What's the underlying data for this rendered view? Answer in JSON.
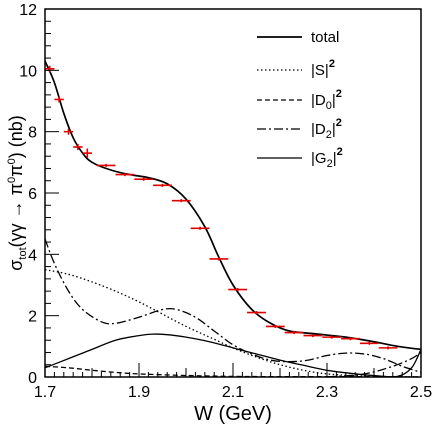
{
  "chart_data": {
    "type": "line",
    "xlabel": "W (GeV)",
    "ylabel": "σtot(γγ → π0π0) (nb)",
    "xlim": [
      1.7,
      2.5
    ],
    "ylim": [
      0,
      12
    ],
    "x_ticks": [
      "1.7",
      "1.9",
      "2.1",
      "2.3",
      "2.5"
    ],
    "y_ticks": [
      "0",
      "2",
      "4",
      "6",
      "8",
      "10",
      "12"
    ],
    "legend_position": "top-right",
    "grid": false,
    "series": [
      {
        "name": "total",
        "style": "solid",
        "points": [
          [
            1.7,
            10.3
          ],
          [
            1.72,
            9.6
          ],
          [
            1.74,
            8.6
          ],
          [
            1.76,
            7.8
          ],
          [
            1.78,
            7.3
          ],
          [
            1.8,
            7.0
          ],
          [
            1.84,
            6.75
          ],
          [
            1.88,
            6.6
          ],
          [
            1.92,
            6.5
          ],
          [
            1.96,
            6.3
          ],
          [
            2.0,
            5.8
          ],
          [
            2.04,
            4.9
          ],
          [
            2.07,
            3.9
          ],
          [
            2.1,
            3.0
          ],
          [
            2.14,
            2.2
          ],
          [
            2.18,
            1.75
          ],
          [
            2.22,
            1.5
          ],
          [
            2.28,
            1.4
          ],
          [
            2.34,
            1.3
          ],
          [
            2.4,
            1.15
          ],
          [
            2.45,
            1.0
          ],
          [
            2.5,
            0.9
          ]
        ]
      },
      {
        "name": "|S|²",
        "label_parts": [
          "|S|",
          "2"
        ],
        "style": "dotted",
        "points": [
          [
            1.7,
            3.5
          ],
          [
            1.75,
            3.35
          ],
          [
            1.8,
            3.1
          ],
          [
            1.85,
            2.8
          ],
          [
            1.9,
            2.45
          ],
          [
            1.95,
            2.05
          ],
          [
            2.0,
            1.65
          ],
          [
            2.05,
            1.3
          ],
          [
            2.1,
            0.95
          ],
          [
            2.15,
            0.65
          ],
          [
            2.2,
            0.4
          ],
          [
            2.25,
            0.22
          ],
          [
            2.3,
            0.1
          ],
          [
            2.35,
            0.05
          ],
          [
            2.4,
            0.02
          ],
          [
            2.5,
            0.0
          ]
        ]
      },
      {
        "name": "|D0|²",
        "label_parts": [
          "|D",
          "0",
          "|",
          "2"
        ],
        "style": "dashed",
        "points": [
          [
            1.7,
            0.35
          ],
          [
            1.75,
            0.3
          ],
          [
            1.8,
            0.22
          ],
          [
            1.85,
            0.15
          ],
          [
            1.9,
            0.1
          ],
          [
            2.0,
            0.05
          ],
          [
            2.1,
            0.02
          ],
          [
            2.2,
            0.01
          ],
          [
            2.3,
            0.01
          ],
          [
            2.4,
            0.01
          ],
          [
            2.5,
            0.0
          ]
        ]
      },
      {
        "name": "|D2|²",
        "label_parts": [
          "|D",
          "2",
          "|",
          "2"
        ],
        "style": "dashdot",
        "points": [
          [
            1.7,
            4.5
          ],
          [
            1.72,
            3.7
          ],
          [
            1.75,
            2.8
          ],
          [
            1.78,
            2.2
          ],
          [
            1.82,
            1.8
          ],
          [
            1.85,
            1.75
          ],
          [
            1.9,
            1.95
          ],
          [
            1.95,
            2.2
          ],
          [
            1.98,
            2.2
          ],
          [
            2.02,
            1.95
          ],
          [
            2.06,
            1.5
          ],
          [
            2.1,
            1.05
          ],
          [
            2.14,
            0.75
          ],
          [
            2.18,
            0.55
          ],
          [
            2.22,
            0.5
          ],
          [
            2.26,
            0.55
          ],
          [
            2.3,
            0.7
          ],
          [
            2.34,
            0.78
          ],
          [
            2.38,
            0.75
          ],
          [
            2.42,
            0.6
          ],
          [
            2.46,
            0.35
          ],
          [
            2.5,
            0.15
          ]
        ]
      },
      {
        "name": "|G2|²",
        "label_parts": [
          "|G",
          "2",
          "|",
          "2"
        ],
        "style": "solid",
        "points": [
          [
            1.7,
            0.3
          ],
          [
            1.75,
            0.6
          ],
          [
            1.8,
            0.9
          ],
          [
            1.85,
            1.2
          ],
          [
            1.9,
            1.35
          ],
          [
            1.93,
            1.4
          ],
          [
            1.96,
            1.38
          ],
          [
            2.0,
            1.3
          ],
          [
            2.05,
            1.15
          ],
          [
            2.1,
            0.95
          ],
          [
            2.15,
            0.75
          ],
          [
            2.2,
            0.55
          ],
          [
            2.25,
            0.38
          ],
          [
            2.3,
            0.22
          ],
          [
            2.35,
            0.12
          ],
          [
            2.4,
            0.05
          ],
          [
            2.45,
            0.02
          ],
          [
            2.48,
            0.3
          ],
          [
            2.5,
            0.9
          ]
        ]
      }
    ],
    "extra_curve": {
      "style": "dashdot",
      "points": [
        [
          2.3,
          0.0
        ],
        [
          2.38,
          0.1
        ],
        [
          2.44,
          0.35
        ],
        [
          2.48,
          0.6
        ],
        [
          2.5,
          0.8
        ]
      ]
    },
    "data_points": {
      "color": "#e00000",
      "points": [
        {
          "x": 1.71,
          "y": 10.05,
          "dx": 0.01,
          "dy": 0.1
        },
        {
          "x": 1.73,
          "y": 9.05,
          "dx": 0.01,
          "dy": 0.1
        },
        {
          "x": 1.75,
          "y": 8.0,
          "dx": 0.01,
          "dy": 0.1
        },
        {
          "x": 1.77,
          "y": 7.5,
          "dx": 0.01,
          "dy": 0.1
        },
        {
          "x": 1.79,
          "y": 7.3,
          "dx": 0.01,
          "dy": 0.15
        },
        {
          "x": 1.83,
          "y": 6.9,
          "dx": 0.02,
          "dy": 0.05
        },
        {
          "x": 1.87,
          "y": 6.6,
          "dx": 0.02,
          "dy": 0.05
        },
        {
          "x": 1.91,
          "y": 6.45,
          "dx": 0.02,
          "dy": 0.05
        },
        {
          "x": 1.95,
          "y": 6.25,
          "dx": 0.02,
          "dy": 0.05
        },
        {
          "x": 1.99,
          "y": 5.75,
          "dx": 0.02,
          "dy": 0.05
        },
        {
          "x": 2.03,
          "y": 4.85,
          "dx": 0.02,
          "dy": 0.05
        },
        {
          "x": 2.07,
          "y": 3.85,
          "dx": 0.02,
          "dy": 0.05
        },
        {
          "x": 2.11,
          "y": 2.85,
          "dx": 0.02,
          "dy": 0.05
        },
        {
          "x": 2.15,
          "y": 2.1,
          "dx": 0.02,
          "dy": 0.05
        },
        {
          "x": 2.19,
          "y": 1.65,
          "dx": 0.02,
          "dy": 0.05
        },
        {
          "x": 2.23,
          "y": 1.45,
          "dx": 0.02,
          "dy": 0.05
        },
        {
          "x": 2.27,
          "y": 1.35,
          "dx": 0.02,
          "dy": 0.05
        },
        {
          "x": 2.31,
          "y": 1.3,
          "dx": 0.02,
          "dy": 0.05
        },
        {
          "x": 2.35,
          "y": 1.25,
          "dx": 0.02,
          "dy": 0.05
        },
        {
          "x": 2.39,
          "y": 1.1,
          "dx": 0.02,
          "dy": 0.05
        },
        {
          "x": 2.43,
          "y": 0.95,
          "dx": 0.02,
          "dy": 0.05
        }
      ]
    }
  }
}
